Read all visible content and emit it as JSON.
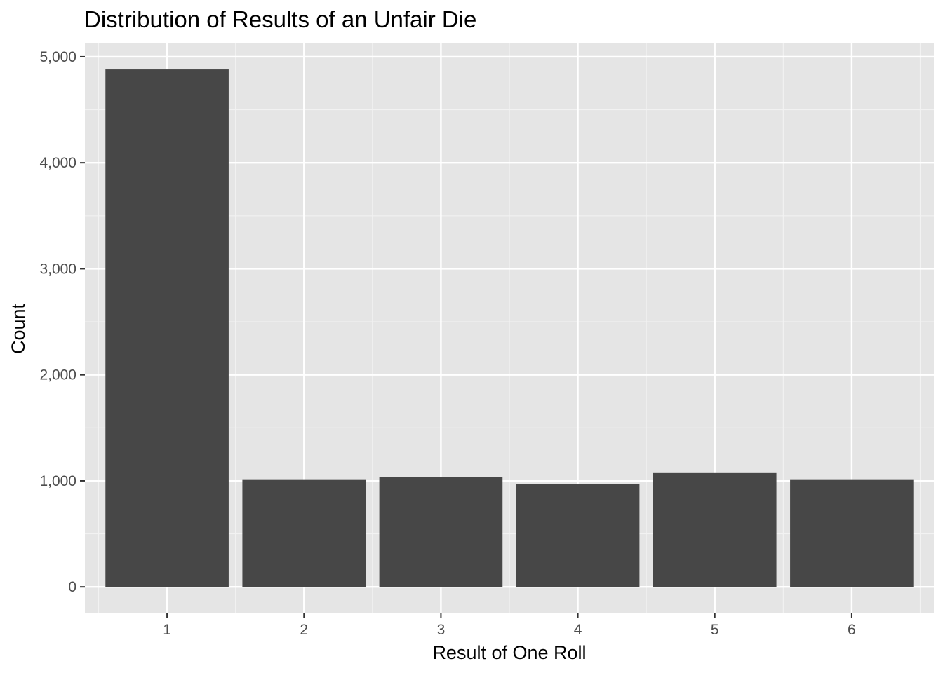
{
  "chart_data": {
    "type": "bar",
    "title": "Distribution of Results of an Unfair Die",
    "xlabel": "Result of One Roll",
    "ylabel": "Count",
    "categories": [
      "1",
      "2",
      "3",
      "4",
      "5",
      "6"
    ],
    "values": [
      4880,
      1015,
      1035,
      970,
      1080,
      1015
    ],
    "ylim": [
      -250,
      5125
    ],
    "yticks": [
      0,
      1000,
      2000,
      3000,
      4000,
      5000
    ],
    "ytick_labels": [
      "0",
      "1,000",
      "2,000",
      "3,000",
      "4,000",
      "5,000"
    ],
    "grid": true,
    "colors": {
      "panel_background": "#e5e5e5",
      "grid_major": "#ffffff",
      "grid_minor": "#f2f2f2",
      "bar_fill": "#474747",
      "tick_mark": "#333333",
      "tick_label": "#4d4d4d"
    }
  }
}
